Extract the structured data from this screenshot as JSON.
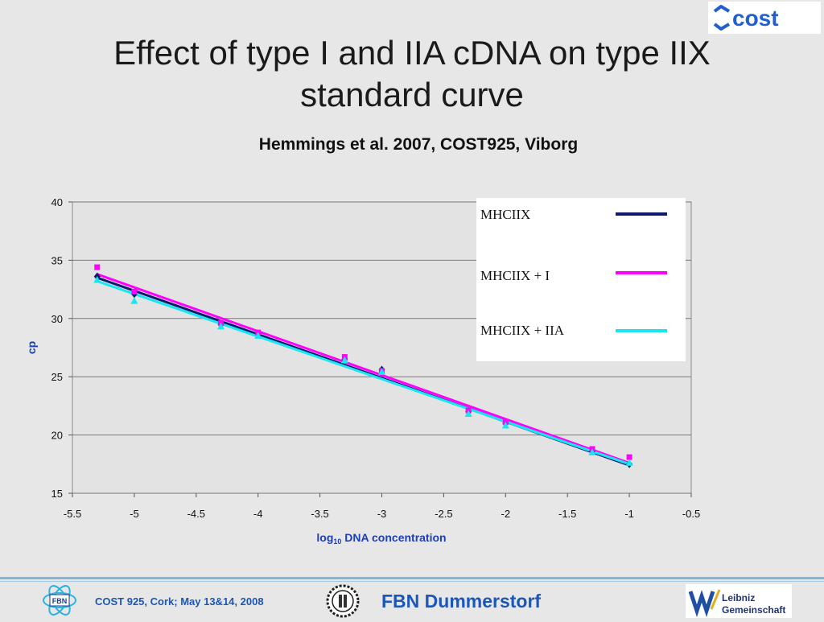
{
  "slide": {
    "title": "Effect of type I and IIA cDNA on type IIX standard curve",
    "subtitle": "Hemmings et al. 2007, COST925, Viborg"
  },
  "logos": {
    "cost": "cost",
    "fbn_badge": "FBN",
    "leibniz_line1": "Leibniz",
    "leibniz_line2": "Gemeinschaft"
  },
  "footer": {
    "conference": "COST 925, Cork; May 13&14, 2008",
    "institute": "FBN Dummerstorf"
  },
  "colors": {
    "mhciix": "#0d1a6e",
    "mhciix_i": "#ff00ff",
    "mhciix_iia": "#19e6f2",
    "axis_label": "#1c3fb8",
    "footer_text": "#1c56b8"
  },
  "chart_data": {
    "type": "scatter",
    "xlabel_main": "log",
    "xlabel_sub": "10",
    "xlabel_rest": " DNA concentration",
    "ylabel": "cp",
    "xlim": [
      -5.5,
      -0.5
    ],
    "ylim": [
      15,
      40
    ],
    "xticks": [
      "-5.5",
      "-5",
      "-4.5",
      "-4",
      "-3.5",
      "-3",
      "-2.5",
      "-2",
      "-1.5",
      "-1",
      "-0.5"
    ],
    "yticks": [
      "15",
      "20",
      "25",
      "30",
      "35",
      "40"
    ],
    "grid": "horizontal",
    "legend_position": "top-right",
    "series": [
      {
        "name": "MHCIIX",
        "color": "#0d1a6e",
        "marker": "diamond",
        "x": [
          -5.3,
          -5.0,
          -4.3,
          -4.0,
          -3.3,
          -3.0,
          -2.3,
          -2.0,
          -1.3,
          -1.0
        ],
        "y": [
          33.6,
          32.1,
          29.5,
          28.7,
          26.5,
          25.6,
          22.0,
          21.0,
          18.6,
          17.5
        ],
        "trend": [
          [
            -5.3,
            33.5
          ],
          [
            -1.0,
            17.4
          ]
        ]
      },
      {
        "name": "MHCIIX + I",
        "color": "#ff00ff",
        "marker": "square",
        "x": [
          -5.3,
          -5.0,
          -4.3,
          -4.0,
          -3.3,
          -3.0,
          -2.3,
          -2.0,
          -1.3,
          -1.0
        ],
        "y": [
          34.4,
          32.3,
          29.6,
          28.8,
          26.7,
          25.5,
          22.1,
          21.1,
          18.8,
          18.1
        ],
        "trend": [
          [
            -5.3,
            33.8
          ],
          [
            -1.0,
            17.6
          ]
        ]
      },
      {
        "name": "MHCIIX + IIA",
        "color": "#19e6f2",
        "marker": "triangle",
        "x": [
          -5.3,
          -5.0,
          -4.3,
          -4.0,
          -3.3,
          -3.0,
          -2.3,
          -2.0,
          -1.3,
          -1.0
        ],
        "y": [
          33.3,
          31.5,
          29.3,
          28.5,
          26.4,
          25.4,
          21.8,
          20.8,
          18.5,
          17.6
        ],
        "trend": [
          [
            -5.3,
            33.2
          ],
          [
            -1.0,
            17.5
          ]
        ]
      }
    ]
  }
}
